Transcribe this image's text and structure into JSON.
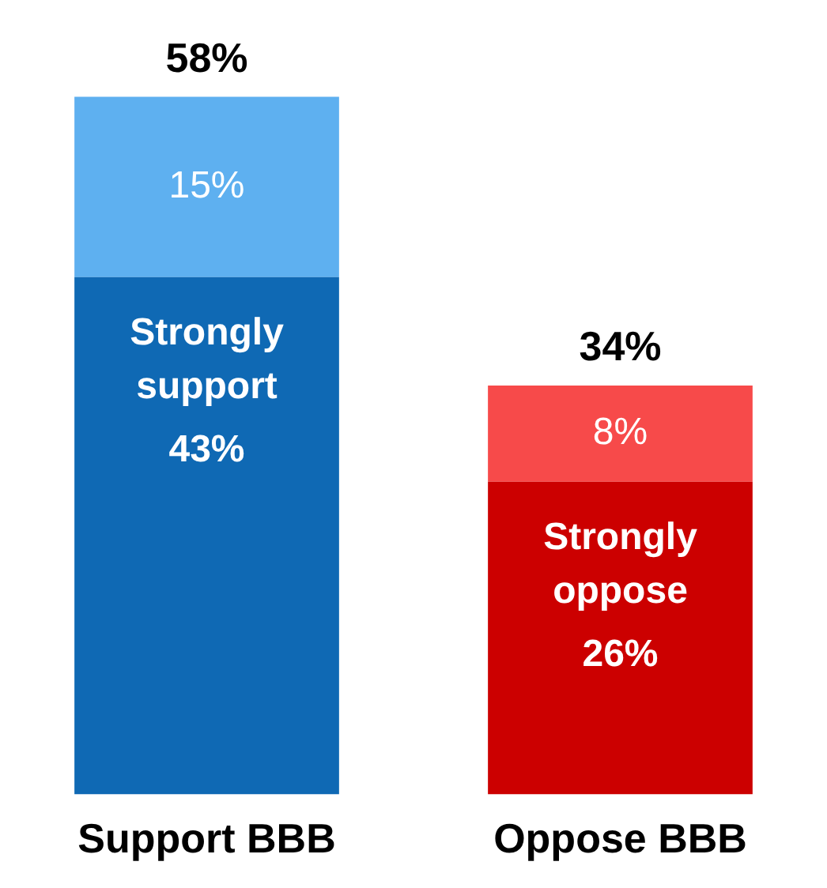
{
  "chart_data": {
    "type": "bar",
    "stacked": true,
    "categories": [
      "Support BBB",
      "Oppose BBB"
    ],
    "series": [
      {
        "colors": [
          "#0f69b4",
          "#cc0000"
        ],
        "values": [
          43,
          26
        ],
        "value_labels": [
          "Strongly\nsupport\n43%",
          "Strongly\noppose\n26%"
        ]
      },
      {
        "colors": [
          "#5eb0f0",
          "#f74a4a"
        ],
        "values": [
          15,
          8
        ],
        "value_labels": [
          "15%",
          "8%"
        ]
      }
    ],
    "totals": [
      "58%",
      "34%"
    ],
    "tick_labels": "x",
    "grid": false,
    "legend": false
  }
}
